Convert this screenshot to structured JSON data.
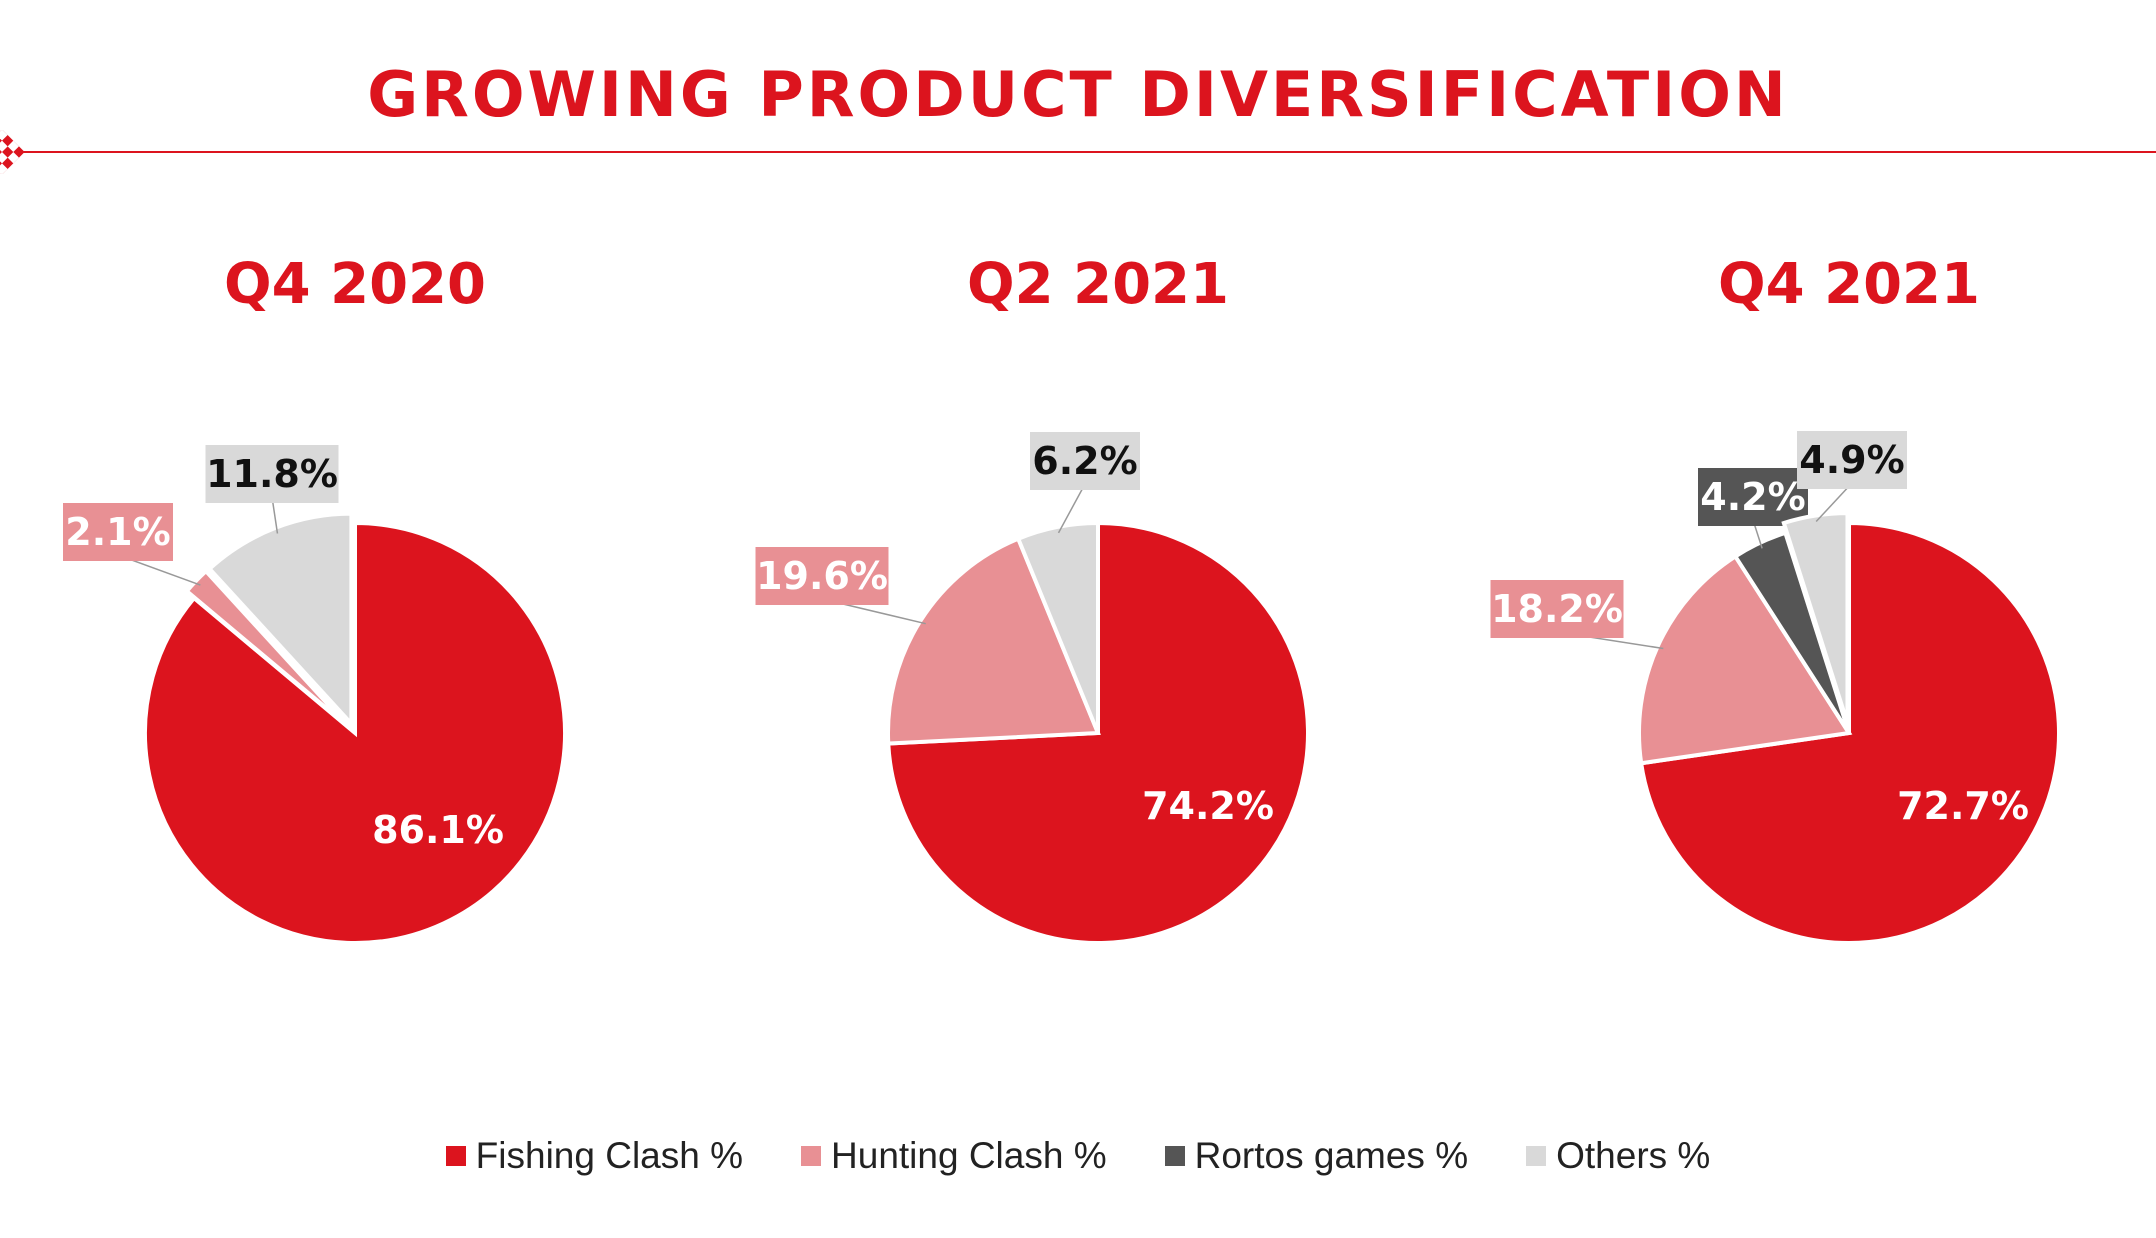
{
  "title": "GROWING PRODUCT DIVERSIFICATION",
  "colors": {
    "brand": "#dc141e",
    "Fishing Clash %": "#dc141e",
    "Hunting Clash %": "#e89094",
    "Rortos games %": "#555555",
    "Others %": "#d9d9d9"
  },
  "legend": [
    "Fishing Clash %",
    "Hunting Clash %",
    "Rortos games %",
    "Others %"
  ],
  "chart_data": [
    {
      "type": "pie",
      "title": "Q4 2020",
      "categories": [
        "Fishing Clash %",
        "Hunting Clash %",
        "Others %"
      ],
      "values": [
        86.1,
        2.1,
        11.8
      ],
      "labels": [
        "86.1%",
        "2.1%",
        "11.8%"
      ]
    },
    {
      "type": "pie",
      "title": "Q2 2021",
      "categories": [
        "Fishing Clash %",
        "Hunting Clash %",
        "Others %"
      ],
      "values": [
        74.2,
        19.6,
        6.2
      ],
      "labels": [
        "74.2%",
        "19.6%",
        "6.2%"
      ]
    },
    {
      "type": "pie",
      "title": "Q4 2021",
      "categories": [
        "Fishing Clash %",
        "Hunting Clash %",
        "Rortos games %",
        "Others %"
      ],
      "values": [
        72.7,
        18.2,
        4.2,
        4.9
      ],
      "labels": [
        "72.7%",
        "18.2%",
        "4.2%",
        "4.9%"
      ]
    }
  ]
}
